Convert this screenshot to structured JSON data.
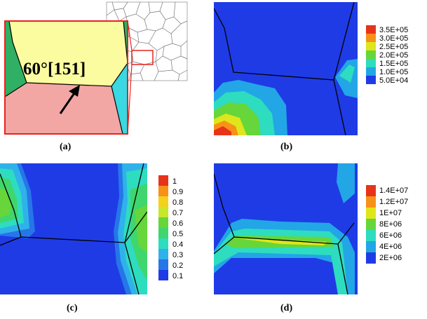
{
  "panels": {
    "a": {
      "label": "(a)",
      "annotation": "60°[151]",
      "colors": {
        "yellow": "#fbfba0",
        "pink": "#f2a7a4",
        "green": "#2fb064",
        "cyan": "#39d8e2",
        "frame": "#e8231d"
      }
    },
    "b": {
      "label": "(b)",
      "legend": [
        "3.5E+05",
        "3.0E+05",
        "2.5E+05",
        "2.0E+05",
        "1.5E+05",
        "1.0E+05",
        "5.0E+04"
      ],
      "legend_colors": [
        "#e8331b",
        "#f7911a",
        "#dfe61a",
        "#66d63a",
        "#2edcc0",
        "#22a6e6",
        "#1f3be6"
      ]
    },
    "c": {
      "label": "(c)",
      "legend": [
        "1",
        "0.9",
        "0.8",
        "0.7",
        "0.6",
        "0.5",
        "0.4",
        "0.3",
        "0.2",
        "0.1"
      ],
      "legend_colors": [
        "#e8331b",
        "#f7911a",
        "#f4d11a",
        "#c8e62a",
        "#66d63a",
        "#3fd66e",
        "#2edcc0",
        "#2fb2ea",
        "#2676e8",
        "#1f3be6"
      ]
    },
    "d": {
      "label": "(d)",
      "legend": [
        "1.4E+07",
        "1.2E+07",
        "1E+07",
        "8E+06",
        "6E+06",
        "4E+06",
        "2E+06"
      ],
      "legend_colors": [
        "#e8331b",
        "#f7911a",
        "#dfe61a",
        "#66d63a",
        "#2edcc0",
        "#22a6e6",
        "#1f3be6"
      ]
    }
  }
}
